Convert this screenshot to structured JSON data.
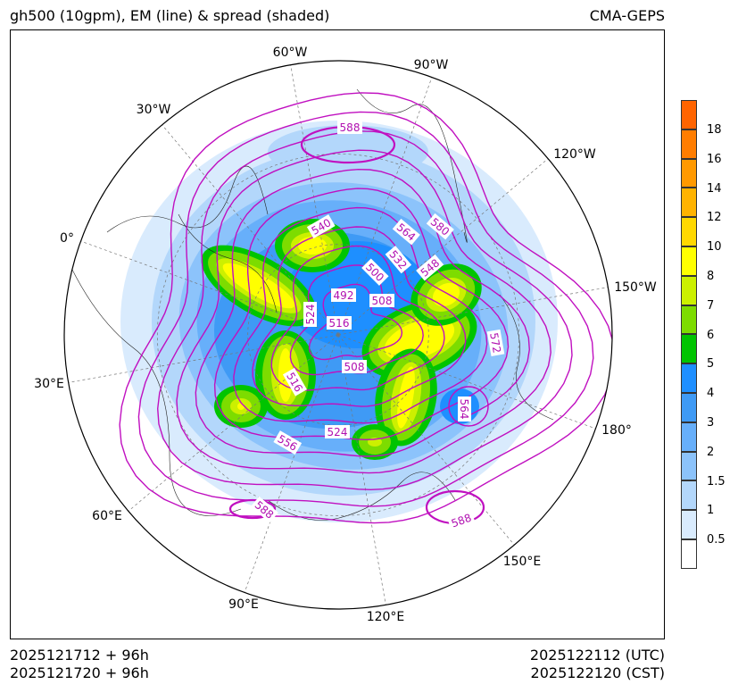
{
  "title_left": "gh500 (10gpm), EM (line) & spread (shaded)",
  "title_right": "CMA-GEPS",
  "footer": {
    "init_utc": "2025121712 + 96h",
    "init_cst": "2025121720 + 96h",
    "valid_utc": "2025122112 (UTC)",
    "valid_cst": "2025122120 (CST)"
  },
  "longitude_labels": [
    "60°W",
    "90°W",
    "30°W",
    "120°W",
    "0°",
    "150°W",
    "30°E",
    "180°",
    "60°E",
    "150°E",
    "90°E",
    "120°E"
  ],
  "contour_labels": [
    "588",
    "540",
    "564",
    "580",
    "532",
    "500",
    "548",
    "492",
    "508",
    "524",
    "516",
    "572",
    "508",
    "516",
    "564",
    "556",
    "524",
    "588",
    "588"
  ],
  "colorbar": {
    "labels": [
      "18",
      "16",
      "14",
      "12",
      "10",
      "8",
      "7",
      "6",
      "5",
      "4",
      "3",
      "2",
      "1.5",
      "1",
      "0.5"
    ],
    "colors": [
      "#ff6400",
      "#ff7d00",
      "#ff9900",
      "#ffb300",
      "#ffd800",
      "#ffff00",
      "#ccf000",
      "#7ddc00",
      "#00c400",
      "#1e8fff",
      "#3f9af5",
      "#67affa",
      "#8cc3fb",
      "#b3d7fb",
      "#d9ebfd",
      "#ffffff"
    ]
  },
  "chart_data": {
    "type": "contour",
    "projection": "north polar stereographic",
    "contour_levels": [
      492,
      500,
      508,
      516,
      524,
      532,
      540,
      548,
      556,
      564,
      572,
      580,
      588
    ],
    "shading_levels": [
      0.5,
      1,
      1.5,
      2,
      3,
      4,
      5,
      6,
      7,
      8,
      10,
      12,
      14,
      16,
      18
    ]
  }
}
